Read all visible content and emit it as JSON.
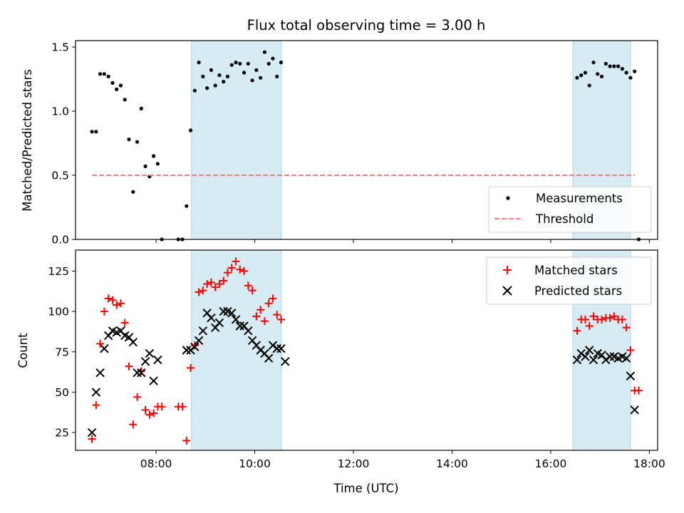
{
  "chart_data": [
    {
      "type": "scatter",
      "title": "Flux total observing time = 3.00 h",
      "xlabel": "",
      "ylabel": "Matched/Predicted stars",
      "xlim": [
        "06:22",
        "18:10"
      ],
      "ylim": [
        0,
        1.55
      ],
      "yticks": [
        "0.0",
        "0.5",
        "1.0",
        "1.5"
      ],
      "shaded_intervals": [
        [
          "08:43",
          "10:32"
        ],
        [
          "16:27",
          "17:37"
        ]
      ],
      "legend_position": "lower-right",
      "series": [
        {
          "name": "Measurements",
          "marker": "dot",
          "color": "#000000",
          "points": [
            [
              "06:42",
              0.84
            ],
            [
              "06:47",
              0.84
            ],
            [
              "06:52",
              1.29
            ],
            [
              "06:57",
              1.29
            ],
            [
              "07:02",
              1.27
            ],
            [
              "07:07",
              1.22
            ],
            [
              "07:12",
              1.17
            ],
            [
              "07:17",
              1.2
            ],
            [
              "07:22",
              1.09
            ],
            [
              "07:27",
              0.78
            ],
            [
              "07:32",
              0.37
            ],
            [
              "07:37",
              0.76
            ],
            [
              "07:42",
              1.02
            ],
            [
              "07:47",
              0.57
            ],
            [
              "07:52",
              0.49
            ],
            [
              "07:57",
              0.65
            ],
            [
              "08:02",
              0.59
            ],
            [
              "08:07",
              0.0
            ],
            [
              "08:27",
              0.0
            ],
            [
              "08:32",
              0.0
            ],
            [
              "08:37",
              0.26
            ],
            [
              "08:42",
              0.85
            ],
            [
              "08:47",
              1.16
            ],
            [
              "08:52",
              1.38
            ],
            [
              "08:57",
              1.27
            ],
            [
              "09:02",
              1.18
            ],
            [
              "09:07",
              1.32
            ],
            [
              "09:12",
              1.2
            ],
            [
              "09:17",
              1.28
            ],
            [
              "09:22",
              1.23
            ],
            [
              "09:27",
              1.27
            ],
            [
              "09:32",
              1.36
            ],
            [
              "09:37",
              1.38
            ],
            [
              "09:42",
              1.37
            ],
            [
              "09:47",
              1.3
            ],
            [
              "09:52",
              1.37
            ],
            [
              "09:57",
              1.24
            ],
            [
              "10:02",
              1.32
            ],
            [
              "10:07",
              1.26
            ],
            [
              "10:12",
              1.46
            ],
            [
              "10:17",
              1.37
            ],
            [
              "10:22",
              1.41
            ],
            [
              "10:27",
              1.27
            ],
            [
              "10:32",
              1.38
            ],
            [
              "16:32",
              1.26
            ],
            [
              "16:37",
              1.28
            ],
            [
              "16:42",
              1.3
            ],
            [
              "16:47",
              1.2
            ],
            [
              "16:52",
              1.38
            ],
            [
              "16:57",
              1.29
            ],
            [
              "17:02",
              1.27
            ],
            [
              "17:07",
              1.37
            ],
            [
              "17:12",
              1.35
            ],
            [
              "17:17",
              1.35
            ],
            [
              "17:22",
              1.35
            ],
            [
              "17:27",
              1.33
            ],
            [
              "17:32",
              1.3
            ],
            [
              "17:37",
              1.26
            ],
            [
              "17:42",
              1.31
            ],
            [
              "17:47",
              0.0
            ]
          ]
        },
        {
          "name": "Threshold",
          "marker": "dashed-line",
          "color": "#f08080",
          "points": [
            [
              "06:42",
              0.5
            ],
            [
              "17:42",
              0.5
            ]
          ]
        }
      ]
    },
    {
      "type": "scatter",
      "title": "",
      "xlabel": "Time (UTC)",
      "ylabel": "Count",
      "xlim": [
        "06:22",
        "18:10"
      ],
      "ylim": [
        14,
        138
      ],
      "yticks": [
        "25",
        "50",
        "75",
        "100",
        "125"
      ],
      "xticks": [
        "08:00",
        "10:00",
        "12:00",
        "14:00",
        "16:00",
        "18:00"
      ],
      "shaded_intervals": [
        [
          "08:43",
          "10:32"
        ],
        [
          "16:27",
          "17:37"
        ]
      ],
      "legend_position": "upper-right",
      "series": [
        {
          "name": "Matched stars",
          "marker": "plus",
          "color": "#ff0000",
          "points": [
            [
              "06:42",
              21
            ],
            [
              "06:47",
              42
            ],
            [
              "06:52",
              80
            ],
            [
              "06:57",
              100
            ],
            [
              "07:02",
              108
            ],
            [
              "07:07",
              107
            ],
            [
              "07:12",
              104
            ],
            [
              "07:17",
              105
            ],
            [
              "07:22",
              93
            ],
            [
              "07:27",
              66
            ],
            [
              "07:32",
              30
            ],
            [
              "07:37",
              47
            ],
            [
              "07:42",
              63
            ],
            [
              "07:47",
              39
            ],
            [
              "07:52",
              36
            ],
            [
              "07:57",
              37
            ],
            [
              "08:02",
              41
            ],
            [
              "08:07",
              41
            ],
            [
              "08:27",
              41
            ],
            [
              "08:32",
              41
            ],
            [
              "08:37",
              20
            ],
            [
              "08:42",
              65
            ],
            [
              "08:47",
              79
            ],
            [
              "08:52",
              112
            ],
            [
              "08:57",
              113
            ],
            [
              "09:02",
              117
            ],
            [
              "09:07",
              118
            ],
            [
              "09:12",
              115
            ],
            [
              "09:17",
              117
            ],
            [
              "09:22",
              119
            ],
            [
              "09:27",
              124
            ],
            [
              "09:32",
              127
            ],
            [
              "09:37",
              131
            ],
            [
              "09:42",
              126
            ],
            [
              "09:47",
              125
            ],
            [
              "09:52",
              116
            ],
            [
              "09:57",
              113
            ],
            [
              "10:02",
              97
            ],
            [
              "10:07",
              101
            ],
            [
              "10:12",
              94
            ],
            [
              "10:17",
              105
            ],
            [
              "10:22",
              108
            ],
            [
              "10:27",
              98
            ],
            [
              "10:32",
              95
            ],
            [
              "16:32",
              88
            ],
            [
              "16:37",
              95
            ],
            [
              "16:42",
              95
            ],
            [
              "16:47",
              91
            ],
            [
              "16:52",
              97
            ],
            [
              "16:57",
              95
            ],
            [
              "17:02",
              95
            ],
            [
              "17:07",
              96
            ],
            [
              "17:12",
              96
            ],
            [
              "17:17",
              97
            ],
            [
              "17:22",
              95
            ],
            [
              "17:27",
              95
            ],
            [
              "17:32",
              90
            ],
            [
              "17:37",
              76
            ],
            [
              "17:42",
              51
            ],
            [
              "17:47",
              51
            ]
          ]
        },
        {
          "name": "Predicted stars",
          "marker": "x",
          "color": "#000000",
          "points": [
            [
              "06:42",
              25
            ],
            [
              "06:47",
              50
            ],
            [
              "06:52",
              62
            ],
            [
              "06:57",
              77
            ],
            [
              "07:02",
              85
            ],
            [
              "07:07",
              88
            ],
            [
              "07:12",
              87
            ],
            [
              "07:17",
              88
            ],
            [
              "07:22",
              85
            ],
            [
              "07:27",
              84
            ],
            [
              "07:32",
              81
            ],
            [
              "07:37",
              62
            ],
            [
              "07:42",
              62
            ],
            [
              "07:47",
              69
            ],
            [
              "07:52",
              74
            ],
            [
              "07:57",
              57
            ],
            [
              "08:02",
              70
            ],
            [
              "08:37",
              76
            ],
            [
              "08:42",
              76
            ],
            [
              "08:47",
              78
            ],
            [
              "08:52",
              82
            ],
            [
              "08:57",
              88
            ],
            [
              "09:02",
              99
            ],
            [
              "09:07",
              96
            ],
            [
              "09:12",
              90
            ],
            [
              "09:17",
              93
            ],
            [
              "09:22",
              100
            ],
            [
              "09:27",
              100
            ],
            [
              "09:32",
              99
            ],
            [
              "09:37",
              95
            ],
            [
              "09:42",
              91
            ],
            [
              "09:47",
              91
            ],
            [
              "09:52",
              88
            ],
            [
              "09:57",
              82
            ],
            [
              "10:02",
              79
            ],
            [
              "10:07",
              76
            ],
            [
              "10:12",
              74
            ],
            [
              "10:17",
              71
            ],
            [
              "10:22",
              79
            ],
            [
              "10:27",
              77
            ],
            [
              "10:32",
              77
            ],
            [
              "10:37",
              69
            ],
            [
              "16:32",
              70
            ],
            [
              "16:37",
              74
            ],
            [
              "16:42",
              72
            ],
            [
              "16:47",
              76
            ],
            [
              "16:52",
              70
            ],
            [
              "16:57",
              74
            ],
            [
              "17:02",
              73
            ],
            [
              "17:07",
              70
            ],
            [
              "17:12",
              72
            ],
            [
              "17:17",
              72
            ],
            [
              "17:22",
              71
            ],
            [
              "17:27",
              72
            ],
            [
              "17:32",
              71
            ],
            [
              "17:37",
              60
            ],
            [
              "17:42",
              39
            ]
          ]
        }
      ]
    }
  ]
}
